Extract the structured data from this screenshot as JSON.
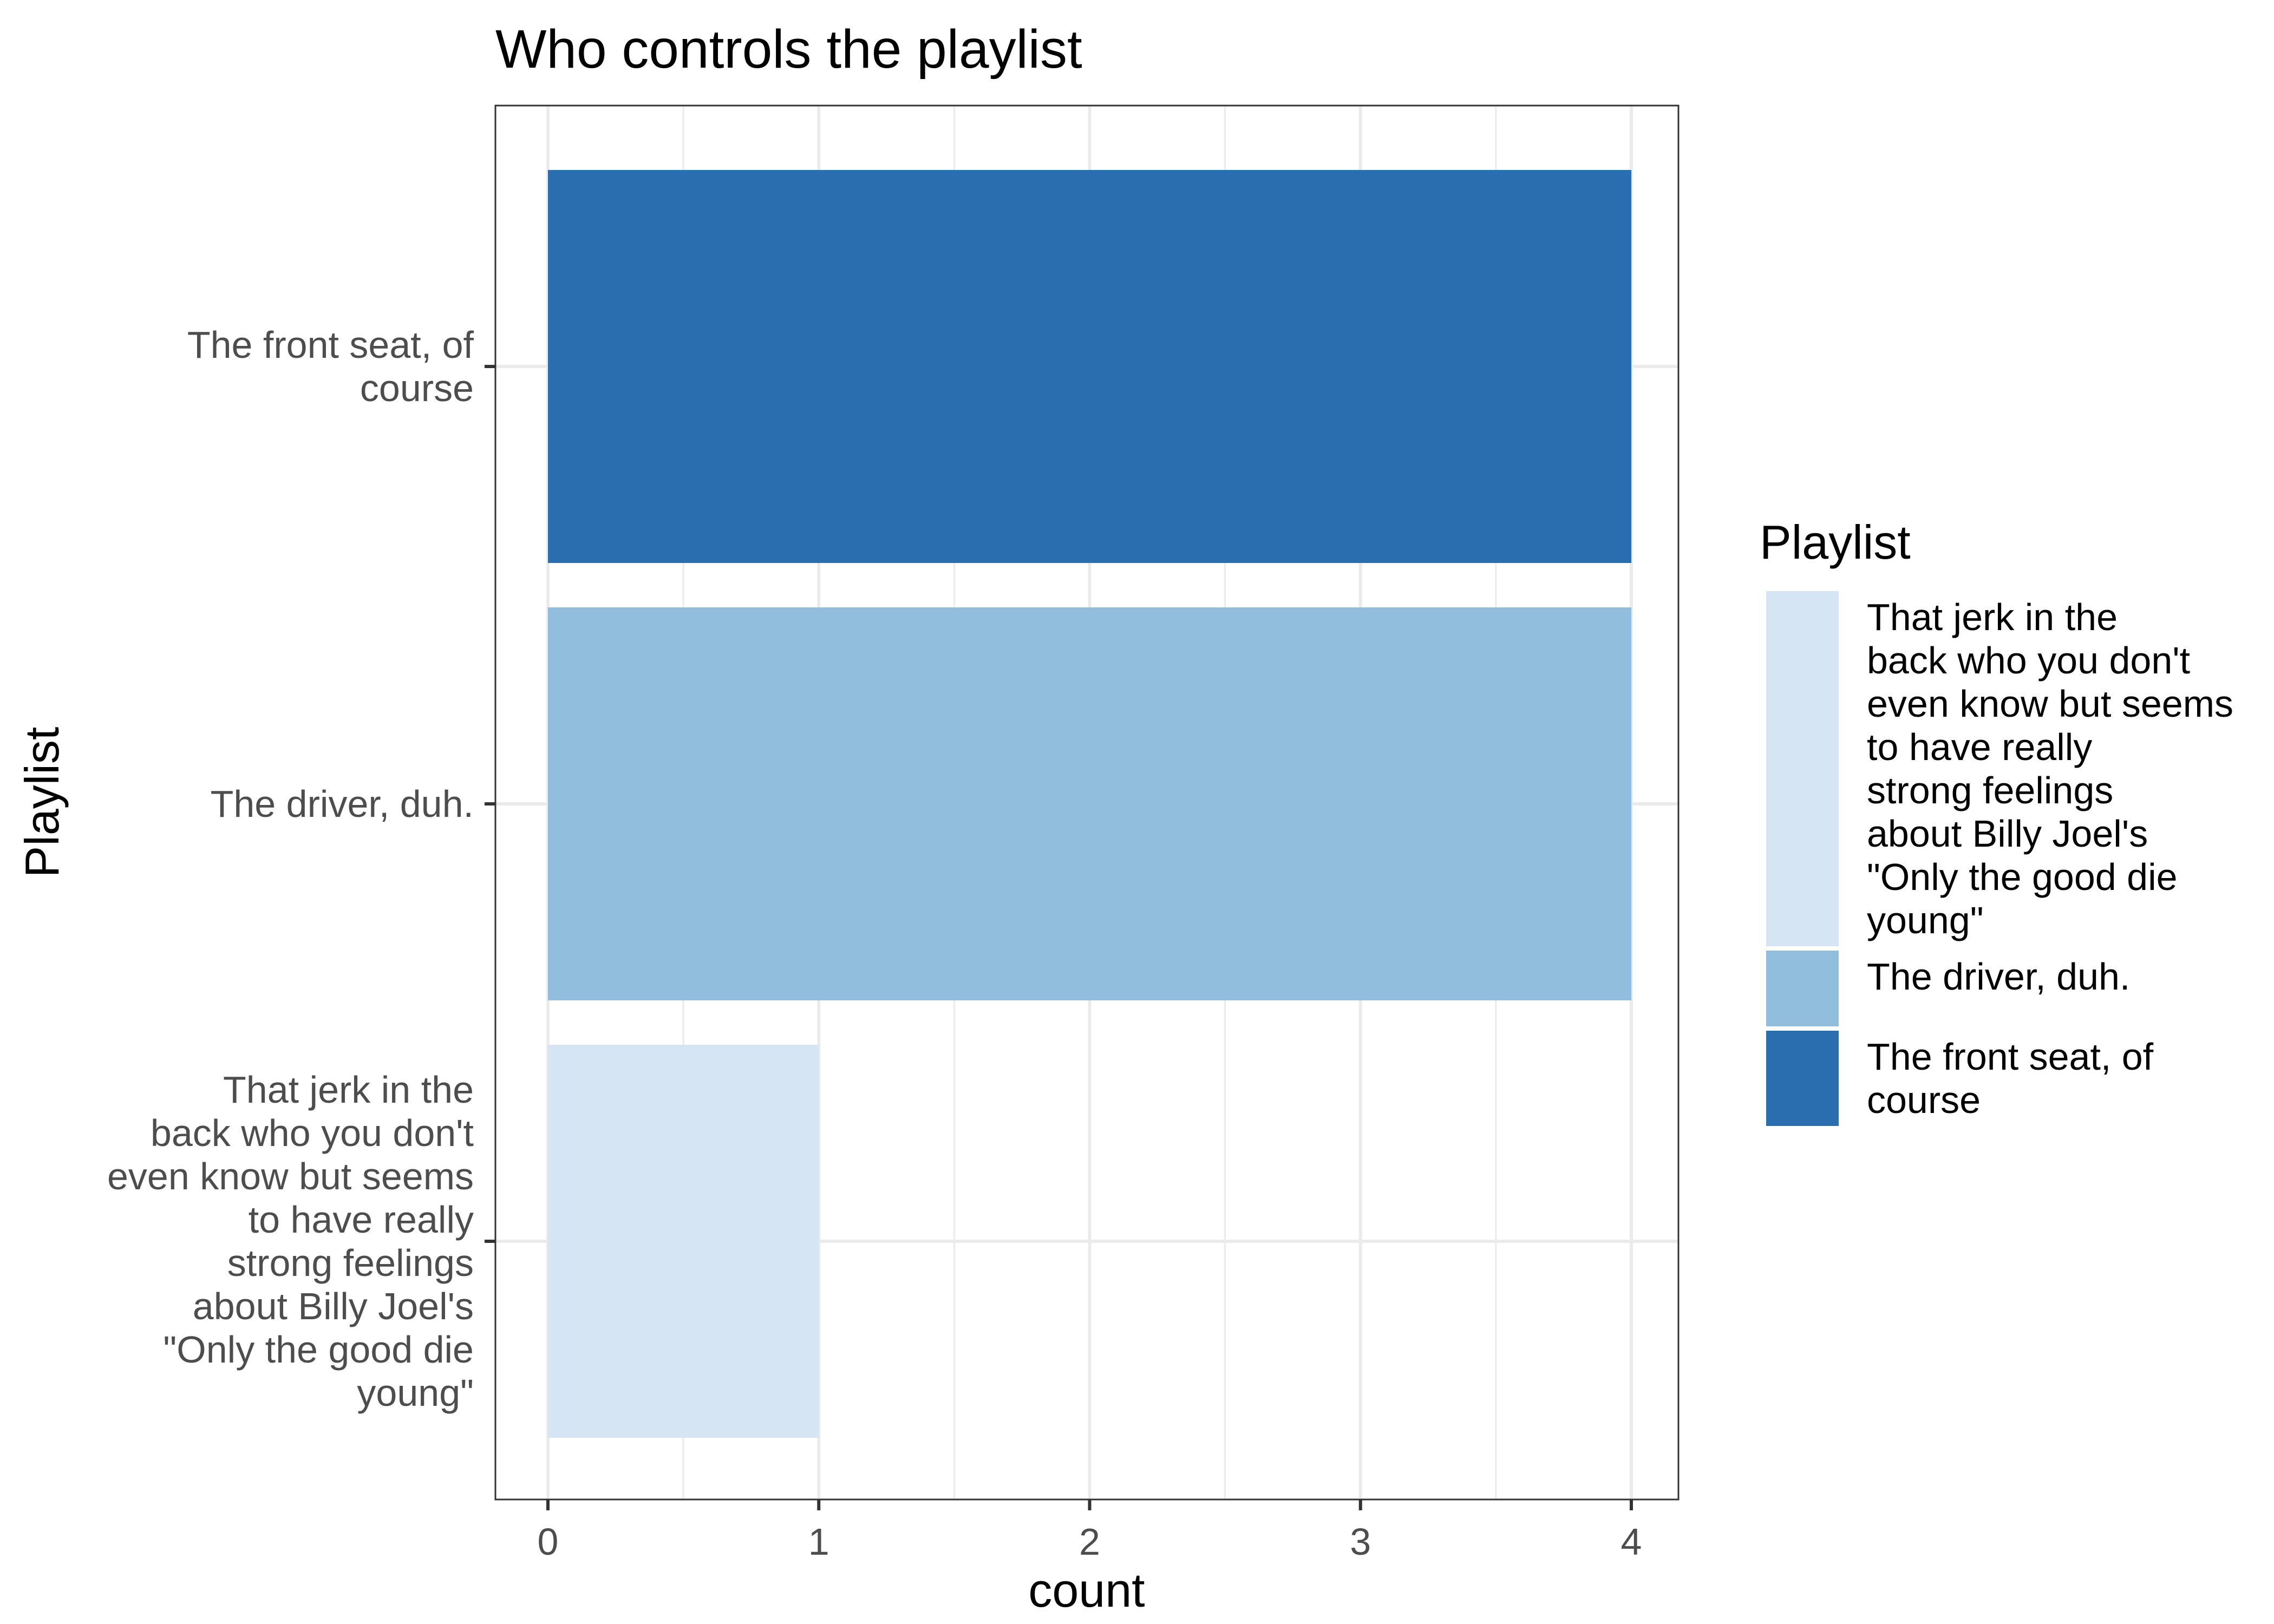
{
  "chart_data": {
    "type": "bar",
    "orientation": "horizontal",
    "title": "Who controls the playlist",
    "xlabel": "count",
    "ylabel": "Playlist",
    "xlim": [
      0,
      4
    ],
    "x_ticks": [
      "0",
      "1",
      "2",
      "3",
      "4"
    ],
    "grid": true,
    "legend_position": "right",
    "legend_title": "Playlist",
    "categories": [
      "That jerk in the back who you don't even know but seems to have really strong feelings about Billy Joel's \"Only the good die young\"",
      "The driver, duh.",
      "The front seat, of course"
    ],
    "category_label_lines": [
      [
        "That jerk in the",
        "back who you don't",
        "even know but seems",
        "to have really",
        "strong feelings",
        "about Billy Joel's",
        "\"Only the good die",
        "young\""
      ],
      [
        "The driver, duh."
      ],
      [
        "The front seat, of",
        "course"
      ]
    ],
    "values": [
      1,
      4,
      4
    ],
    "colors": [
      "#d6e5f4",
      "#91bedc",
      "#2a6eb0"
    ],
    "legend_entries": [
      {
        "lines": [
          "That jerk in the",
          "back who you don't",
          "even know but seems",
          "to have really",
          "strong feelings",
          "about Billy Joel's",
          "\"Only the good die",
          "young\""
        ],
        "color": "#d6e5f4"
      },
      {
        "lines": [
          "The driver, duh."
        ],
        "color": "#91bedc"
      },
      {
        "lines": [
          "The front seat, of",
          "course"
        ],
        "color": "#2a6eb0"
      }
    ]
  }
}
